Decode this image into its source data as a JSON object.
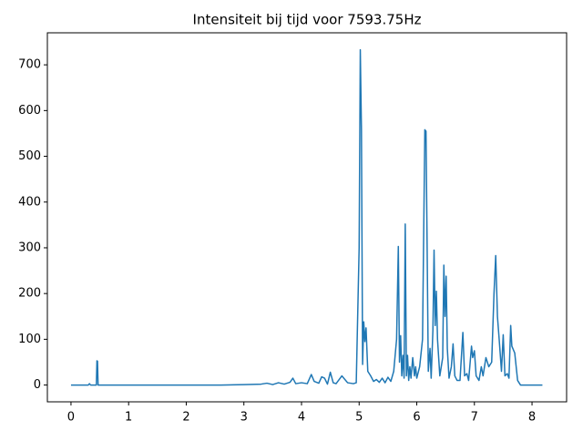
{
  "chart_data": {
    "type": "line",
    "title": "Intensiteit bij tijd voor 7593.75Hz",
    "x": [
      0,
      0.3,
      0.32,
      0.34,
      0.44,
      0.45,
      0.46,
      0.47,
      1,
      2,
      2.6,
      3,
      3.3,
      3.4,
      3.5,
      3.6,
      3.7,
      3.8,
      3.85,
      3.9,
      4.0,
      4.1,
      4.17,
      4.22,
      4.3,
      4.35,
      4.4,
      4.45,
      4.5,
      4.55,
      4.6,
      4.7,
      4.8,
      4.9,
      4.95,
      5.0,
      5.02,
      5.04,
      5.06,
      5.08,
      5.1,
      5.12,
      5.15,
      5.2,
      5.25,
      5.3,
      5.35,
      5.4,
      5.45,
      5.5,
      5.55,
      5.6,
      5.65,
      5.68,
      5.7,
      5.72,
      5.74,
      5.76,
      5.78,
      5.8,
      5.82,
      5.84,
      5.86,
      5.88,
      5.9,
      5.93,
      5.96,
      5.98,
      6.0,
      6.05,
      6.1,
      6.14,
      6.16,
      6.18,
      6.2,
      6.23,
      6.25,
      6.28,
      6.3,
      6.32,
      6.34,
      6.36,
      6.4,
      6.45,
      6.47,
      6.49,
      6.51,
      6.53,
      6.56,
      6.6,
      6.63,
      6.66,
      6.7,
      6.75,
      6.8,
      6.83,
      6.87,
      6.9,
      6.95,
      6.97,
      7.0,
      7.03,
      7.08,
      7.12,
      7.15,
      7.2,
      7.25,
      7.3,
      7.34,
      7.37,
      7.4,
      7.43,
      7.47,
      7.5,
      7.53,
      7.57,
      7.6,
      7.63,
      7.65,
      7.7,
      7.75,
      7.8,
      8.0,
      8.18
    ],
    "series": [
      {
        "color": "#1f77b4",
        "values": [
          0,
          0,
          3,
          0,
          0,
          53,
          52,
          0,
          0,
          0,
          0,
          1,
          2,
          4,
          1,
          5,
          2,
          6,
          15,
          3,
          5,
          3,
          23,
          8,
          4,
          18,
          15,
          2,
          28,
          5,
          3,
          20,
          5,
          3,
          5,
          300,
          733,
          560,
          45,
          138,
          95,
          125,
          30,
          20,
          8,
          12,
          6,
          15,
          5,
          17,
          8,
          30,
          100,
          303,
          50,
          108,
          20,
          65,
          15,
          352,
          20,
          65,
          10,
          40,
          15,
          60,
          20,
          40,
          15,
          40,
          100,
          558,
          555,
          300,
          30,
          80,
          15,
          120,
          295,
          130,
          205,
          100,
          20,
          60,
          262,
          150,
          238,
          80,
          15,
          40,
          90,
          20,
          10,
          10,
          115,
          20,
          25,
          10,
          85,
          60,
          75,
          20,
          10,
          40,
          20,
          60,
          40,
          50,
          200,
          283,
          150,
          100,
          30,
          110,
          20,
          25,
          15,
          130,
          85,
          70,
          10,
          0,
          0,
          0
        ]
      }
    ],
    "xlim": [
      -0.41,
      8.6
    ],
    "ylim": [
      -36.7,
      770
    ],
    "xticks": [
      0,
      1,
      2,
      3,
      4,
      5,
      6,
      7,
      8
    ],
    "yticks": [
      0,
      100,
      200,
      300,
      400,
      500,
      600,
      700
    ]
  }
}
